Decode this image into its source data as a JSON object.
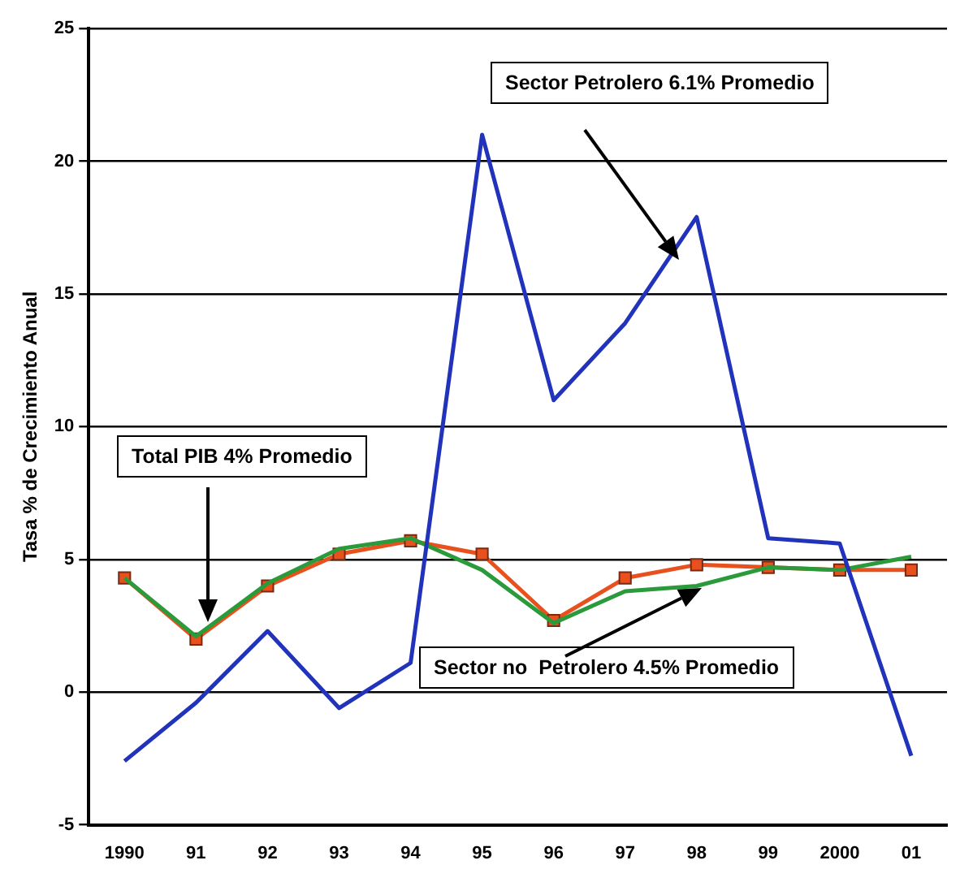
{
  "chart_data": {
    "type": "line",
    "ylabel": "Tasa % de Crecimiento Anual",
    "categories": [
      "1990",
      "91",
      "92",
      "93",
      "94",
      "95",
      "96",
      "97",
      "98",
      "99",
      "2000",
      "01"
    ],
    "series": [
      {
        "color": "#2233bb",
        "marker": "none",
        "values": [
          -2.6,
          -0.4,
          2.3,
          -0.6,
          1.1,
          21.0,
          11.0,
          13.9,
          17.9,
          5.8,
          5.6,
          -2.4
        ]
      },
      {
        "color": "#2a9a3a",
        "marker": "none",
        "values": [
          4.3,
          2.1,
          4.1,
          5.4,
          5.8,
          4.6,
          2.6,
          3.8,
          4.0,
          4.7,
          4.6,
          5.1
        ]
      },
      {
        "color": "#e8501e",
        "marker": "square",
        "values": [
          4.3,
          2.0,
          4.0,
          5.2,
          5.7,
          5.2,
          2.7,
          4.3,
          4.8,
          4.7,
          4.6,
          4.6
        ]
      }
    ],
    "ylim": [
      -5,
      25
    ],
    "yticks": [
      -5,
      0,
      5,
      10,
      15,
      20,
      25
    ],
    "grid": "y",
    "legend": false,
    "line_style": "solid",
    "annotations": [
      "Sector Petrolero 6.1% Promedio",
      "Total PIB 4% Promedio",
      "Sector no  Petrolero 4.5% Promedio"
    ]
  }
}
